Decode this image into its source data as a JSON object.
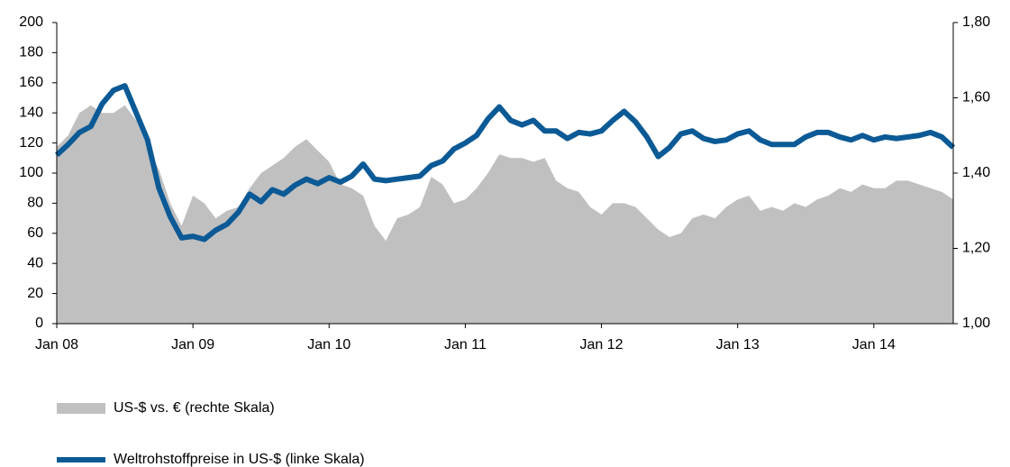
{
  "chart_data": {
    "type": "area-line",
    "categories": [
      "Jan 08",
      null,
      null,
      null,
      null,
      null,
      null,
      null,
      null,
      null,
      null,
      null,
      "Jan 09",
      null,
      null,
      null,
      null,
      null,
      null,
      null,
      null,
      null,
      null,
      null,
      "Jan 10",
      null,
      null,
      null,
      null,
      null,
      null,
      null,
      null,
      null,
      null,
      null,
      "Jan 11",
      null,
      null,
      null,
      null,
      null,
      null,
      null,
      null,
      null,
      null,
      null,
      "Jan 12",
      null,
      null,
      null,
      null,
      null,
      null,
      null,
      null,
      null,
      null,
      null,
      "Jan 13",
      null,
      null,
      null,
      null,
      null,
      null,
      null,
      null,
      null,
      null,
      null,
      "Jan 14",
      null,
      null,
      null,
      null,
      null,
      null,
      null
    ],
    "series": [
      {
        "name": "US-$ vs. € (rechte Skala)",
        "kind": "area",
        "axis": "y2",
        "color": "#c0c0c0",
        "values": [
          1.47,
          1.5,
          1.56,
          1.58,
          1.56,
          1.56,
          1.58,
          1.54,
          1.47,
          1.41,
          1.32,
          1.26,
          1.34,
          1.32,
          1.28,
          1.3,
          1.31,
          1.36,
          1.4,
          1.42,
          1.44,
          1.47,
          1.49,
          1.46,
          1.43,
          1.37,
          1.36,
          1.34,
          1.26,
          1.22,
          1.28,
          1.29,
          1.31,
          1.39,
          1.37,
          1.32,
          1.33,
          1.36,
          1.4,
          1.45,
          1.44,
          1.44,
          1.43,
          1.44,
          1.38,
          1.36,
          1.35,
          1.31,
          1.29,
          1.32,
          1.32,
          1.31,
          1.28,
          1.25,
          1.23,
          1.24,
          1.28,
          1.29,
          1.28,
          1.31,
          1.33,
          1.34,
          1.3,
          1.31,
          1.3,
          1.32,
          1.31,
          1.33,
          1.34,
          1.36,
          1.35,
          1.37,
          1.36,
          1.36,
          1.38,
          1.38,
          1.37,
          1.36,
          1.35,
          1.33
        ]
      },
      {
        "name": "Weltrohstoffpreise in US-$ (linke Skala)",
        "kind": "line",
        "axis": "y",
        "color": "#0b5a96",
        "values": [
          112,
          119,
          127,
          131,
          146,
          155,
          158,
          140,
          122,
          90,
          71,
          57,
          58,
          56,
          62,
          66,
          74,
          86,
          81,
          89,
          86,
          92,
          96,
          93,
          97,
          94,
          98,
          106,
          96,
          95,
          96,
          97,
          98,
          105,
          108,
          116,
          120,
          125,
          136,
          144,
          135,
          132,
          135,
          128,
          128,
          123,
          127,
          126,
          128,
          135,
          141,
          134,
          124,
          111,
          117,
          126,
          128,
          123,
          121,
          122,
          126,
          128,
          122,
          119,
          119,
          119,
          124,
          127,
          127,
          124,
          122,
          125,
          122,
          124,
          123,
          124,
          125,
          127,
          124,
          117
        ]
      }
    ],
    "ylim": [
      0,
      200
    ],
    "yticks": [
      0,
      20,
      40,
      60,
      80,
      100,
      120,
      140,
      160,
      180,
      200
    ],
    "y2lim": [
      1,
      1.8
    ],
    "y2ticks": [
      {
        "value": 1,
        "label": "1,00"
      },
      {
        "value": 1.2,
        "label": "1,20"
      },
      {
        "value": 1.4,
        "label": "1,40"
      },
      {
        "value": 1.6,
        "label": "1,60"
      },
      {
        "value": 1.8,
        "label": "1,80"
      }
    ]
  }
}
